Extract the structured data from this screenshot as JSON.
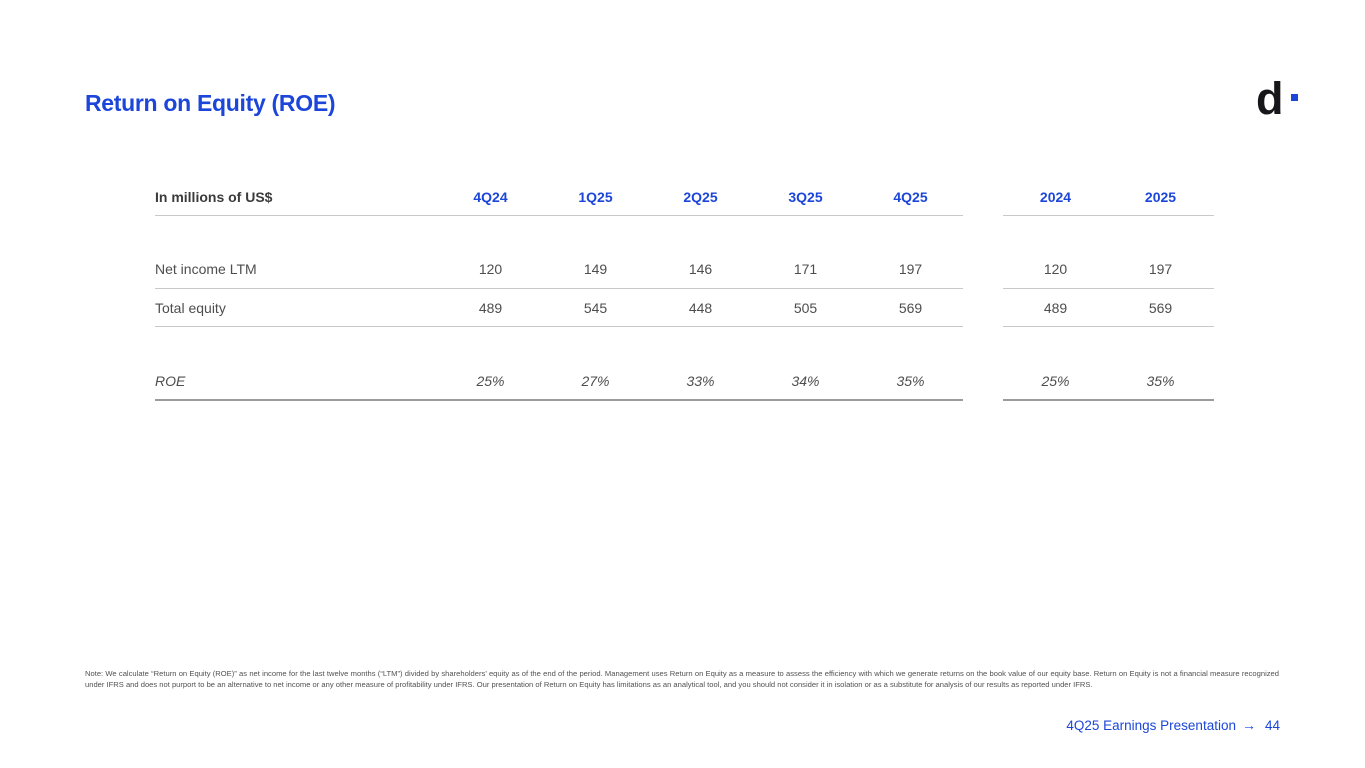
{
  "page": {
    "title": "Return on Equity (ROE)",
    "logo": {
      "letter": "d",
      "dot": "blue-square"
    },
    "note": "Note: We calculate “Return on Equity (ROE)” as net income for the last twelve months (“LTM”) divided by shareholders’ equity as of the end of the period. Management uses Return on Equity as a measure to assess the efficiency with which we generate returns on the book value of our equity base. Return on Equity is not a financial measure recognized under IFRS and does not purport to be an alternative to net income or any other measure of profitability under IFRS. Our presentation of Return on Equity has limitations as an analytical tool, and you should not consider it in isolation or as a substitute for analysis of our results as reported under IFRS.",
    "footer": {
      "label": "4Q25 Earnings Presentation",
      "arrow": "→",
      "page_number": "44"
    }
  },
  "colors": {
    "accent_blue": "#1c46d9",
    "logo_black": "#17171b",
    "body_text": "#4e4e4e",
    "line_light": "#c9c9c9",
    "line_dark": "#9b9b9b"
  },
  "table": {
    "unit_label": "In millions of US$",
    "quarter_headers": [
      "4Q24",
      "1Q25",
      "2Q25",
      "3Q25",
      "4Q25"
    ],
    "year_headers": [
      "2024",
      "2025"
    ],
    "rows": [
      {
        "label": "Net income LTM",
        "quarters": [
          "120",
          "149",
          "146",
          "171",
          "197"
        ],
        "years": [
          "120",
          "197"
        ]
      },
      {
        "label": "Total equity",
        "quarters": [
          "489",
          "545",
          "448",
          "505",
          "569"
        ],
        "years": [
          "489",
          "569"
        ]
      },
      {
        "label": "ROE",
        "quarters": [
          "25%",
          "27%",
          "33%",
          "34%",
          "35%"
        ],
        "years": [
          "25%",
          "35%"
        ]
      }
    ]
  }
}
